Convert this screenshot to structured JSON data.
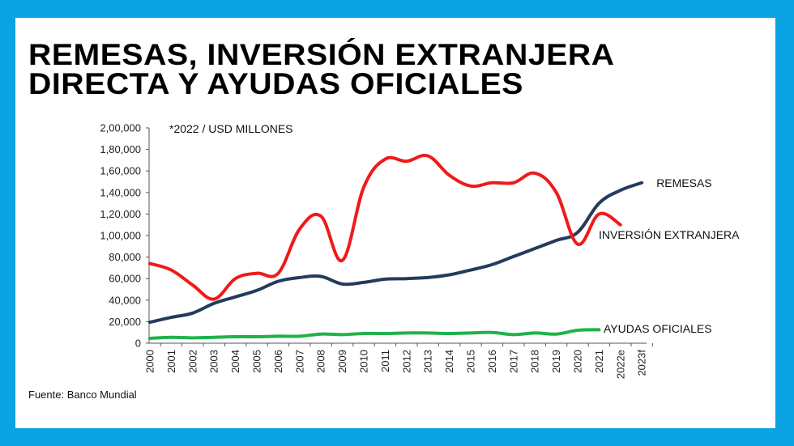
{
  "title": {
    "line1": "REMESAS, INVERSIÓN EXTRANJERA",
    "line2": "DIRECTA Y AYUDAS OFICIALES"
  },
  "source": "Fuente: Banco Mundial",
  "chart_data": {
    "type": "line",
    "subtitle": "*2022 / USD MILLONES",
    "categories": [
      "2000",
      "2001",
      "2002",
      "2003",
      "2004",
      "2005",
      "2006",
      "2007",
      "2008",
      "2009",
      "2010",
      "2011",
      "2012",
      "2013",
      "2014",
      "2015",
      "2016",
      "2017",
      "2018",
      "2019",
      "2020",
      "2021",
      "2022e",
      "2023f"
    ],
    "yticks": [
      "0",
      "20,000",
      "40,000",
      "60,000",
      "80,000",
      "1,00,000",
      "1,20,000",
      "1,40,000",
      "1,60,000",
      "1,80,000",
      "2,00,000"
    ],
    "ylim": [
      0,
      200000
    ],
    "grid": false,
    "legend": "inline-labels",
    "series": [
      {
        "name": "REMESAS",
        "color": "#243b5c",
        "values": [
          19500,
          24000,
          28000,
          37000,
          43000,
          49000,
          57500,
          61000,
          62000,
          55000,
          56500,
          59500,
          60000,
          61000,
          63500,
          68000,
          73000,
          80500,
          88000,
          95500,
          103000,
          130000,
          142000,
          149000
        ]
      },
      {
        "name": "INVERSIÓN EXTRANJERA",
        "color": "#f01a1a",
        "values": [
          74000,
          68000,
          54000,
          41000,
          60000,
          65000,
          65000,
          106000,
          118000,
          77000,
          145000,
          171000,
          169000,
          174000,
          156000,
          146000,
          149000,
          149000,
          158000,
          140000,
          92000,
          120000,
          110000,
          null
        ]
      },
      {
        "name": "AYUDAS OFICIALES",
        "color": "#1fb24a",
        "values": [
          4500,
          5500,
          5000,
          5500,
          6000,
          6000,
          6500,
          6500,
          8500,
          8000,
          9000,
          9000,
          9500,
          9500,
          9000,
          9500,
          10000,
          8000,
          9500,
          8500,
          12000,
          12500,
          null,
          null
        ]
      }
    ]
  }
}
